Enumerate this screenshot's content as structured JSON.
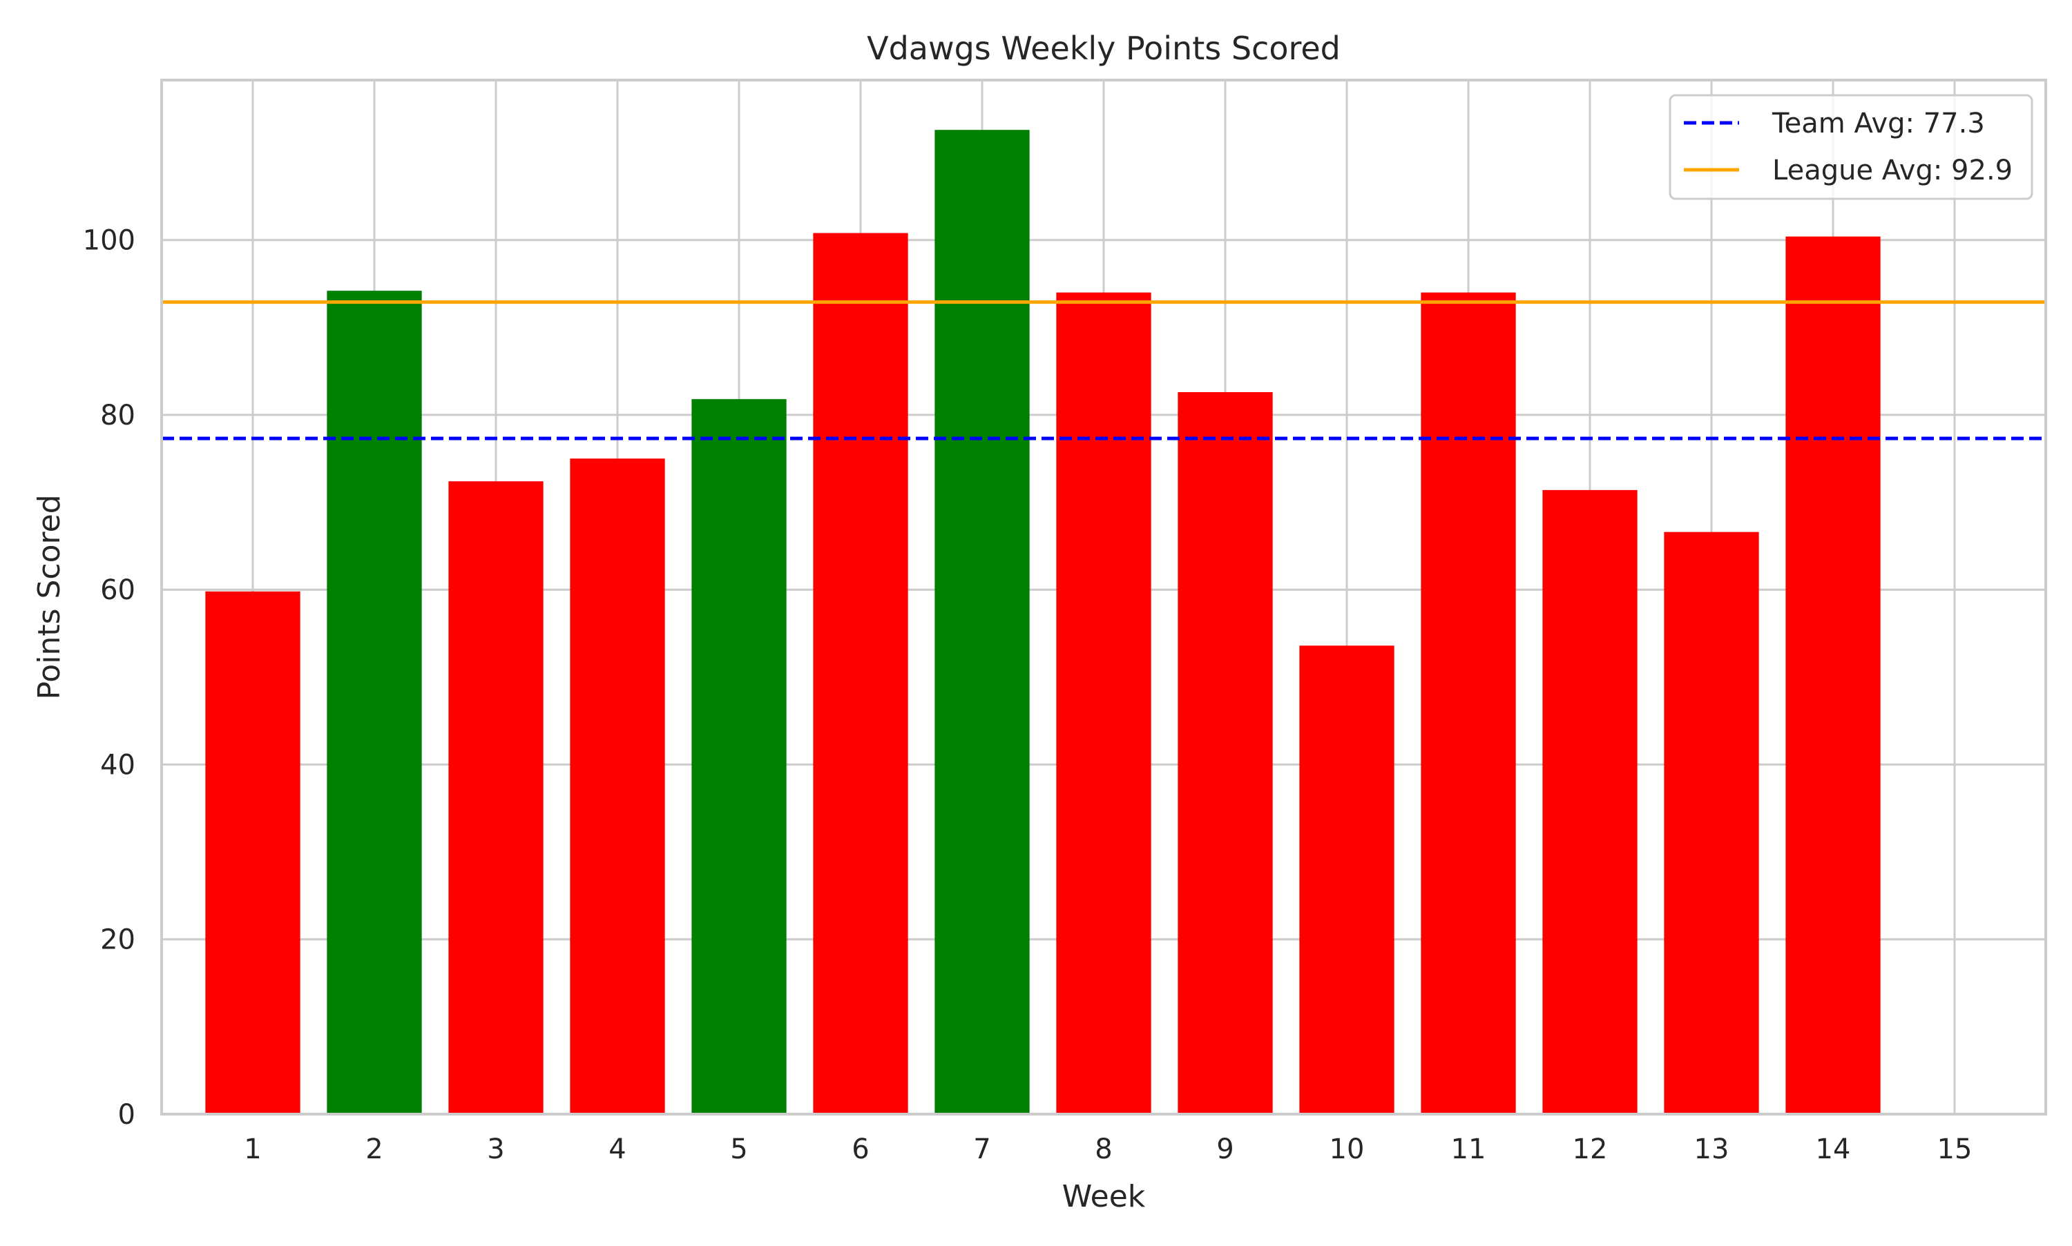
{
  "chart_data": {
    "type": "bar",
    "title": "Vdawgs Weekly Points Scored",
    "xlabel": "Week",
    "ylabel": "Points Scored",
    "categories": [
      "1",
      "2",
      "3",
      "4",
      "5",
      "6",
      "7",
      "8",
      "9",
      "10",
      "11",
      "12",
      "13",
      "14",
      "15"
    ],
    "values": [
      59.8,
      94.2,
      72.4,
      75.0,
      81.8,
      100.8,
      112.6,
      94.0,
      82.6,
      53.6,
      94.0,
      71.4,
      66.6,
      100.4,
      null
    ],
    "bar_colors": [
      "#ff0000",
      "#008000",
      "#ff0000",
      "#ff0000",
      "#008000",
      "#ff0000",
      "#008000",
      "#ff0000",
      "#ff0000",
      "#ff0000",
      "#ff0000",
      "#ff0000",
      "#ff0000",
      "#ff0000",
      "#ff0000"
    ],
    "ylim": [
      0,
      118.3
    ],
    "yticks": [
      0,
      20,
      40,
      60,
      80,
      100
    ],
    "grid": true,
    "legend_placement": "top-right",
    "reference_lines": [
      {
        "label": "Team Avg: 77.3",
        "value": 77.3,
        "color": "#0000ff",
        "style": "dashed"
      },
      {
        "label": "League Avg: 92.9",
        "value": 92.9,
        "color": "#ffa500",
        "style": "solid"
      }
    ]
  }
}
